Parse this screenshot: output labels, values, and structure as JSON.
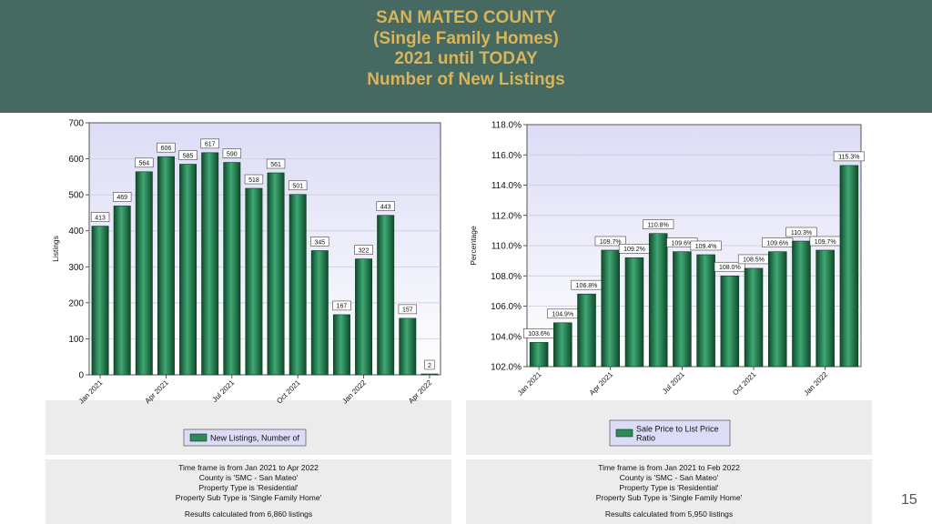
{
  "header": {
    "lines": [
      "SAN MATEO COUNTY",
      "(Single Family Homes)",
      "2021 until TODAY",
      "Number of New Listings"
    ]
  },
  "chart_data": [
    {
      "type": "bar",
      "title": "",
      "xlabel": "",
      "ylabel": "Listings",
      "ylim": [
        0,
        700
      ],
      "yticks": [
        0,
        100,
        200,
        300,
        400,
        500,
        600,
        700
      ],
      "tick_labels": [
        "Jan 2021",
        "Apr 2021",
        "Jul 2021",
        "Oct 2021",
        "Jan 2022",
        "Apr 2022"
      ],
      "tick_positions": [
        0,
        3,
        6,
        9,
        12,
        15
      ],
      "grid": true,
      "legend_position": "bottom-center",
      "bar_color": "#2e8b57",
      "series": [
        {
          "name": "New Listings, Number of",
          "values": [
            413,
            469,
            564,
            606,
            585,
            617,
            590,
            518,
            561,
            501,
            345,
            167,
            322,
            443,
            157,
            2
          ],
          "labels": [
            "413",
            "469",
            "564",
            "606",
            "585",
            "617",
            "590",
            "518",
            "561",
            "501",
            "345",
            "167",
            "322",
            "443",
            "157",
            "2"
          ]
        }
      ]
    },
    {
      "type": "bar",
      "title": "",
      "xlabel": "",
      "ylabel": "Percentage",
      "ylim": [
        102,
        118
      ],
      "yticks": [
        102,
        104,
        106,
        108,
        110,
        112,
        114,
        116,
        118
      ],
      "ytick_labels": [
        "102.0%",
        "104.0%",
        "106.0%",
        "108.0%",
        "110.0%",
        "112.0%",
        "114.0%",
        "116.0%",
        "118.0%"
      ],
      "tick_labels": [
        "Jan 2021",
        "Apr 2021",
        "Jul 2021",
        "Oct 2021",
        "Jan 2022"
      ],
      "tick_positions": [
        0,
        3,
        6,
        9,
        12
      ],
      "grid": true,
      "legend_position": "bottom-center",
      "bar_color": "#2e8b57",
      "series": [
        {
          "name": "Sale Price to List Price Ratio",
          "name_lines": [
            "Sale Price to List Price",
            "Ratio"
          ],
          "values": [
            103.6,
            104.9,
            106.8,
            109.7,
            109.2,
            110.8,
            109.6,
            109.4,
            108.0,
            108.5,
            109.6,
            110.3,
            109.7,
            115.3
          ],
          "labels": [
            "103.6%",
            "104.9%",
            "106.8%",
            "109.7%",
            "109.2%",
            "110.8%",
            "109.6%",
            "109.4%",
            "108.0%",
            "108.5%",
            "109.6%",
            "110.3%",
            "109.7%",
            "115.3%"
          ]
        }
      ]
    }
  ],
  "footers": [
    {
      "lines": [
        "Time frame is from Jan 2021 to Apr 2022",
        "County is 'SMC - San Mateo'",
        "Property Type is 'Residential'",
        "Property Sub Type is 'Single Family Home'"
      ],
      "results": "Results calculated from 6,860 listings"
    },
    {
      "lines": [
        "Time frame is from Jan 2021 to Feb 2022",
        "County is 'SMC - San Mateo'",
        "Property Type is 'Residential'",
        "Property Sub Type is 'Single Family Home'"
      ],
      "results": "Results calculated from 5,950 listings"
    }
  ],
  "page_number": "15"
}
